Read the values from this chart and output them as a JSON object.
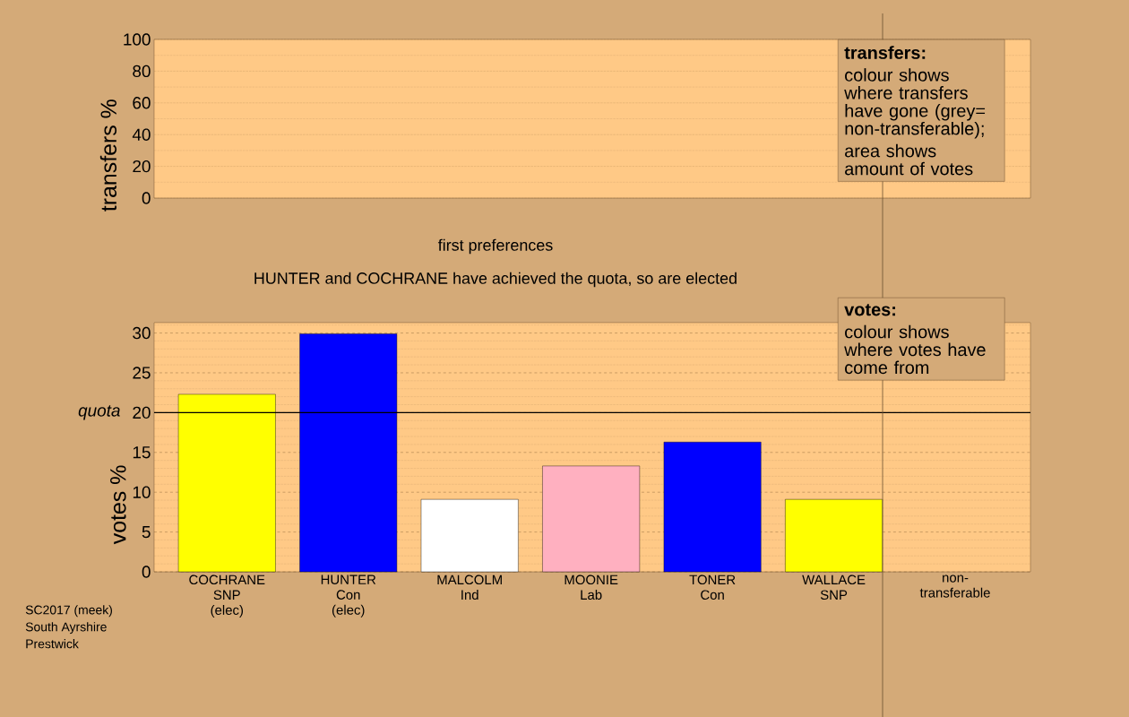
{
  "chart_data": [
    {
      "type": "bar",
      "ylabel": "transfers %",
      "categories": [
        null,
        null,
        null,
        null,
        null,
        null,
        null,
        null
      ],
      "values": [
        null,
        null,
        null,
        null,
        null,
        null,
        null,
        null
      ],
      "ylim": [
        0,
        100
      ],
      "yticks": [
        0,
        {
          "value": 10,
          "label": null
        },
        20,
        {
          "value": 30,
          "label": null
        },
        40,
        {
          "value": 50,
          "label": null
        },
        60,
        {
          "value": 70,
          "label": null
        },
        80,
        {
          "value": 90,
          "label": null
        },
        100
      ],
      "grid": "y",
      "tick_labels": "y",
      "annotations": [
        "transfers:",
        "colour shows where transfers have gone (grey= non-transferable);",
        "area shows amount of votes"
      ]
    },
    {
      "type": "bar",
      "title": "first preferences",
      "subtitle": "HUNTER and COCHRANE have achieved the quota, so are elected",
      "ylabel": "votes %",
      "categories": [
        "COCHRANE SNP (elec)",
        "HUNTER Con (elec)",
        "MALCOLM Ind",
        "MOONIE Lab",
        "TONER Con",
        "WALLACE SNP",
        "non-transferable"
      ],
      "values": [
        22.3,
        29.9,
        9.1,
        13.3,
        16.3,
        9.1,
        null
      ],
      "colors": [
        "#ffff00",
        "#0000ff",
        "#ffffff",
        "#ffb0c0",
        "#0000ff",
        "#ffff00",
        "#b0b0b0"
      ],
      "ylim": [
        0,
        31.3
      ],
      "yticks": [
        0,
        {
          "value": 1,
          "label": null
        },
        {
          "value": 2,
          "label": null
        },
        {
          "value": 3,
          "label": null
        },
        {
          "value": 4,
          "label": null
        },
        5,
        {
          "value": 6,
          "label": null
        },
        {
          "value": 7,
          "label": null
        },
        {
          "value": 8,
          "label": null
        },
        {
          "value": 9,
          "label": null
        },
        10,
        {
          "value": 11,
          "label": null
        },
        {
          "value": 12,
          "label": null
        },
        {
          "value": 13,
          "label": null
        },
        {
          "value": 14,
          "label": null
        },
        15,
        {
          "value": 16,
          "label": null
        },
        {
          "value": 17,
          "label": null
        },
        {
          "value": 18,
          "label": null
        },
        {
          "value": 19,
          "label": null
        },
        20,
        {
          "value": 21,
          "label": null
        },
        {
          "value": 22,
          "label": null
        },
        {
          "value": 23,
          "label": null
        },
        {
          "value": 24,
          "label": null
        },
        25,
        {
          "value": 26,
          "label": null
        },
        {
          "value": 27,
          "label": null
        },
        {
          "value": 28,
          "label": null
        },
        {
          "value": 29,
          "label": null
        },
        30,
        {
          "value": 31,
          "label": null
        }
      ],
      "grid": "y",
      "ref_lines": [
        {
          "axis": "y",
          "value": 20,
          "label": "quota"
        }
      ],
      "annotations": [
        "votes:",
        "colour shows where votes have come from",
        "SC2017 (meek)",
        "South Ayrshire",
        "Prestwick"
      ]
    }
  ]
}
